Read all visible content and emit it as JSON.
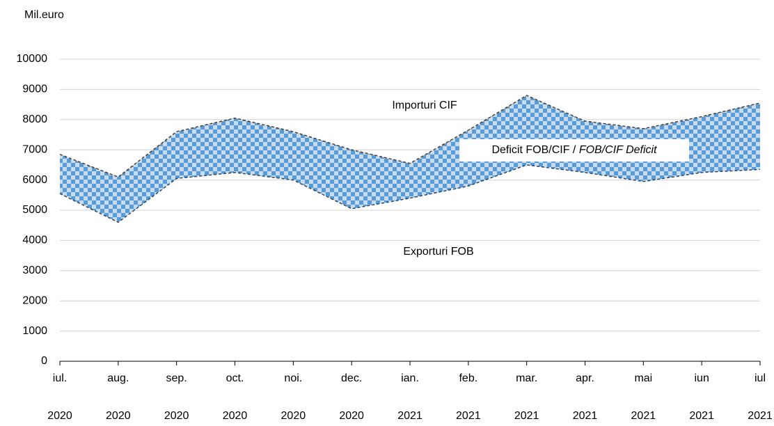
{
  "chart_data": {
    "type": "band",
    "y_axis_label": "Mil.euro",
    "categories": [
      "iul.",
      "aug.",
      "sep.",
      "oct.",
      "noi.",
      "dec.",
      "ian.",
      "feb.",
      "mar.",
      "apr.",
      "mai",
      "iun",
      "iul"
    ],
    "category_years": [
      "2020",
      "2020",
      "2020",
      "2020",
      "2020",
      "2020",
      "2021",
      "2021",
      "2021",
      "2021",
      "2021",
      "2021",
      "2021"
    ],
    "series": [
      {
        "name": "Importuri CIF",
        "color": "#404040",
        "values": [
          6850,
          6100,
          7600,
          8050,
          7600,
          7000,
          6550,
          7650,
          8800,
          7950,
          7700,
          8100,
          8550
        ]
      },
      {
        "name": "Exporturi FOB",
        "color": "#404040",
        "values": [
          5550,
          4600,
          6050,
          6250,
          6000,
          5050,
          5400,
          5800,
          6500,
          6250,
          5950,
          6250,
          6350
        ]
      }
    ],
    "band_label": {
      "text": "Deficit FOB/CIF /",
      "text_italic": "FOB/CIF Deficit"
    },
    "band_colors": [
      "#5b9bd5",
      "#c6dcf1"
    ],
    "ylim": [
      0,
      10000
    ],
    "yticks": [
      0,
      1000,
      2000,
      3000,
      4000,
      5000,
      6000,
      7000,
      8000,
      9000,
      10000
    ],
    "grid": true
  }
}
